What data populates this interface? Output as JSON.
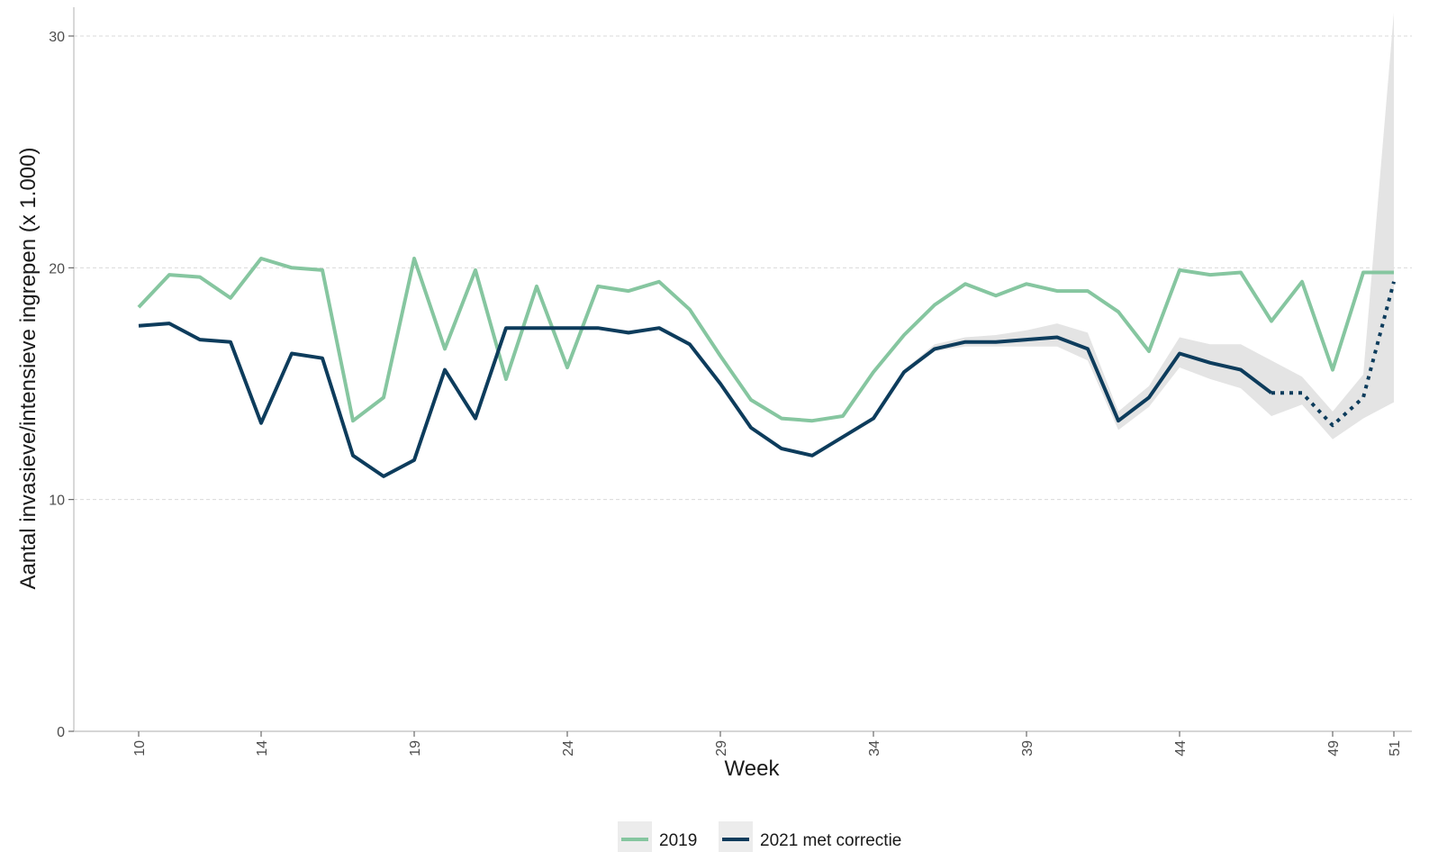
{
  "chart_data": {
    "type": "line",
    "xlabel": "Week",
    "ylabel": "Aantal invasieve/intensieve ingrepen (x 1.000)",
    "xlim": [
      8,
      53
    ],
    "ylim": [
      0,
      31
    ],
    "x_ticks": [
      10,
      14,
      19,
      24,
      29,
      34,
      39,
      44,
      49,
      51
    ],
    "y_ticks": [
      0,
      10,
      20,
      30
    ],
    "grid": "horizontal dashed major",
    "legend_position": "bottom",
    "x": [
      10,
      11,
      12,
      13,
      14,
      15,
      16,
      17,
      18,
      19,
      20,
      21,
      22,
      23,
      24,
      25,
      26,
      27,
      28,
      29,
      30,
      31,
      32,
      33,
      34,
      35,
      36,
      37,
      38,
      39,
      40,
      41,
      42,
      43,
      44,
      45,
      46,
      47,
      48,
      49,
      50,
      51
    ],
    "series": [
      {
        "name": "2019",
        "color": "#86c6a0",
        "values": [
          18.3,
          19.7,
          19.6,
          18.7,
          20.4,
          20.0,
          19.9,
          13.4,
          14.4,
          20.4,
          16.5,
          19.9,
          15.2,
          19.2,
          15.7,
          19.2,
          19.0,
          19.4,
          18.2,
          16.2,
          14.3,
          13.5,
          13.4,
          13.6,
          15.5,
          17.1,
          18.4,
          19.3,
          18.8,
          19.3,
          19.0,
          19.0,
          18.1,
          16.4,
          19.9,
          19.7,
          19.8,
          17.7,
          19.4,
          15.6,
          19.8,
          19.8
        ]
      },
      {
        "name": "2021 met correctie",
        "color": "#0d3c5c",
        "values": [
          17.5,
          17.6,
          16.9,
          16.8,
          13.3,
          16.3,
          16.1,
          11.9,
          11.0,
          11.7,
          15.6,
          13.5,
          17.4,
          17.4,
          17.4,
          17.4,
          17.2,
          17.4,
          16.7,
          15.0,
          13.1,
          12.2,
          11.9,
          12.7,
          13.5,
          15.5,
          16.5,
          16.8,
          16.8,
          16.9,
          17.0,
          16.5,
          13.4,
          14.4,
          16.3,
          15.9,
          15.6,
          14.6,
          14.6,
          13.2,
          14.4,
          19.4
        ],
        "dotted_from_x": 47,
        "band_lower": [
          17.5,
          17.6,
          16.9,
          16.8,
          13.3,
          16.3,
          16.1,
          11.9,
          11.0,
          11.7,
          15.6,
          13.5,
          17.4,
          17.4,
          17.4,
          17.4,
          17.1,
          17.4,
          16.7,
          15.0,
          13.1,
          12.2,
          11.9,
          12.7,
          13.5,
          15.4,
          16.4,
          16.6,
          16.6,
          16.6,
          16.6,
          16.0,
          13.0,
          14.0,
          15.7,
          15.2,
          14.8,
          13.6,
          14.1,
          12.6,
          13.5,
          14.2
        ],
        "band_upper": [
          17.5,
          17.6,
          16.9,
          16.8,
          13.3,
          16.3,
          16.1,
          11.9,
          11.0,
          11.7,
          15.6,
          13.5,
          17.4,
          17.4,
          17.4,
          17.4,
          17.3,
          17.4,
          16.7,
          15.0,
          13.1,
          12.2,
          11.9,
          12.7,
          13.5,
          15.6,
          16.7,
          17.0,
          17.1,
          17.3,
          17.6,
          17.2,
          13.8,
          14.9,
          17.0,
          16.7,
          16.7,
          16.0,
          15.3,
          13.8,
          15.4,
          31.0
        ],
        "band_color": "#e4e4e4"
      }
    ]
  }
}
